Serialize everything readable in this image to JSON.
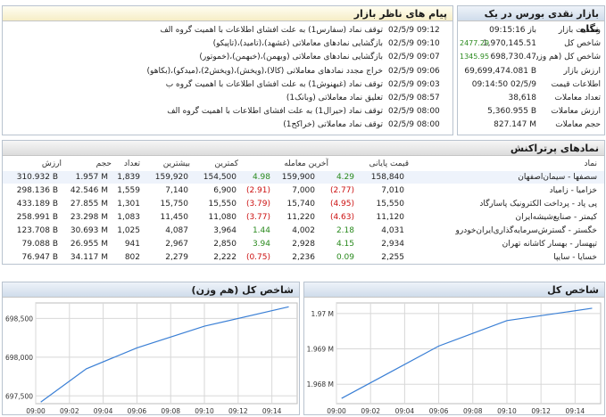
{
  "messages": {
    "title": "پیام های ناظر بازار",
    "items": [
      {
        "time": "02/5/9 09:12",
        "text": "توقف نماد (سفارس1) به علت افشای اطلاعات با اهمیت گروه الف"
      },
      {
        "time": "02/5/9 09:10",
        "text": "بازگشایی نمادهای معاملاتی (غشهد)،(تامید)،(تاپیکو)"
      },
      {
        "time": "02/5/9 09:07",
        "text": "بازگشایی نمادهای معاملاتی (وبهمن)،(خبهمن)،(خموتور)"
      },
      {
        "time": "02/5/9 09:06",
        "text": "خراج مجدد نمادهای معاملاتی (کالا)،(ویخش)،(ویخش2)،(میدکو)،(بکاهو)"
      },
      {
        "time": "02/5/9 09:03",
        "text": "توقف نماد (غبهنوش1) به علت افشای اطلاعات با اهمیت گروه ب"
      },
      {
        "time": "02/5/9 08:57",
        "text": "تعلیق نماد معاملاتی (وبانک1)"
      },
      {
        "time": "02/5/9 08:00",
        "text": "توقف نماد (حیرال1) به علت افشای اطلاعات با اهمیت گروه الف"
      },
      {
        "time": "02/5/9 08:00",
        "text": "توقف نماد معاملاتی (خراکح1)"
      }
    ]
  },
  "market": {
    "title": "بازار نقدی بورس در یک نگاه",
    "rows": [
      {
        "label": "وضعیت بازار",
        "value": "باز 09:15:16",
        "change": ""
      },
      {
        "label": "شاخص کل",
        "value": "1,970,145.51",
        "change": "2477.29"
      },
      {
        "label": "شاخص کل (هم وزن)",
        "value": "698,730.47",
        "change": "1345.95"
      },
      {
        "label": "ارزش بازار",
        "value": "69,699,474.081 B",
        "change": ""
      },
      {
        "label": "اطلاعات قیمت",
        "value": "09:14:50 02/5/9",
        "change": ""
      },
      {
        "label": "تعداد معاملات",
        "value": "38,618",
        "change": ""
      },
      {
        "label": "ارزش معاملات",
        "value": "5,360.955 B",
        "change": ""
      },
      {
        "label": "حجم معاملات",
        "value": "827.147 M",
        "change": ""
      }
    ]
  },
  "influential": {
    "title": "نمادهای پرتراکنش",
    "headers": {
      "symbol": "نماد",
      "close": "قیمت پایانی",
      "last": "آخرین معامله",
      "low": "کمترین",
      "high": "بیشترین",
      "count": "تعداد",
      "volume": "حجم",
      "value": "ارزش"
    },
    "rows": [
      {
        "symbol": "سصفها - سیمان‌اصفهان",
        "close": "158,840",
        "close_chg": "4.29",
        "close_dir": "up",
        "last": "159,900",
        "last_chg": "4.98",
        "last_dir": "up",
        "low": "154,500",
        "high": "159,920",
        "count": "1,839",
        "volume": "1.957 M",
        "value": "310.932 B"
      },
      {
        "symbol": "خزامیا - زامیاد",
        "close": "7,010",
        "close_chg": "(2.77)",
        "close_dir": "down",
        "last": "7,000",
        "last_chg": "(2.91)",
        "last_dir": "down",
        "low": "6,900",
        "high": "7,140",
        "count": "1,559",
        "volume": "42.546 M",
        "value": "298.136 B"
      },
      {
        "symbol": "پی پاد - پرداخت الکترونیک پاسارگاد",
        "close": "15,550",
        "close_chg": "(4.95)",
        "close_dir": "down",
        "last": "15,740",
        "last_chg": "(3.79)",
        "last_dir": "down",
        "low": "15,550",
        "high": "15,750",
        "count": "1,301",
        "volume": "27.855 M",
        "value": "433.189 B"
      },
      {
        "symbol": "کیمتر - صنایع‌شیشه‌ایران",
        "close": "11,120",
        "close_chg": "(4.63)",
        "close_dir": "down",
        "last": "11,220",
        "last_chg": "(3.77)",
        "last_dir": "down",
        "low": "11,080",
        "high": "11,450",
        "count": "1,083",
        "volume": "23.298 M",
        "value": "258.991 B"
      },
      {
        "symbol": "خگستر - گسترش‌سرمایه‌گذاری‌ایران‌خودرو",
        "close": "4,031",
        "close_chg": "2.18",
        "close_dir": "up",
        "last": "4,002",
        "last_chg": "1.44",
        "last_dir": "up",
        "low": "3,964",
        "high": "4,087",
        "count": "1,025",
        "volume": "30.693 M",
        "value": "123.708 B"
      },
      {
        "symbol": "تپهسار - بهسار کاشانه تهران",
        "close": "2,934",
        "close_chg": "4.15",
        "close_dir": "up",
        "last": "2,928",
        "last_chg": "3.94",
        "last_dir": "up",
        "low": "2,850",
        "high": "2,967",
        "count": "941",
        "volume": "26.955 M",
        "value": "79.088 B"
      },
      {
        "symbol": "خسایا - سایپا",
        "close": "2,255",
        "close_chg": "0.09",
        "close_dir": "up",
        "last": "2,236",
        "last_chg": "(0.75)",
        "last_dir": "down",
        "low": "2,222",
        "high": "2,279",
        "count": "802",
        "volume": "34.117 M",
        "value": "76.947 B"
      }
    ]
  },
  "colors": {
    "up": "#2a8a1e",
    "down": "#cc1111",
    "line": "#3a7fd5",
    "grid": "#d8d8d8"
  },
  "chart_data": [
    {
      "type": "line",
      "title": "شاخص کل (هم وزن)",
      "x_ticks": [
        "09:00",
        "09:02",
        "09:04",
        "09:06",
        "09:08",
        "09:10",
        "09:12",
        "09:14"
      ],
      "y_ticks": [
        "697,500",
        "698,000",
        "698,500"
      ],
      "ylim": [
        697400,
        698700
      ],
      "xlim": [
        0,
        15.5
      ],
      "series": [
        {
          "x": [
            0.3,
            3,
            6,
            10,
            15
          ],
          "values": [
            697420,
            697850,
            698120,
            698400,
            698650
          ]
        }
      ]
    },
    {
      "type": "line",
      "title": "شاخص کل",
      "x_ticks": [
        "09:00",
        "09:02",
        "09:04",
        "09:06",
        "09:08",
        "09:10",
        "09:12",
        "09:14"
      ],
      "y_ticks": [
        "1.968 M",
        "1.969 M",
        "1.97 M"
      ],
      "ylim": [
        1967450,
        1970300
      ],
      "xlim": [
        0,
        15.5
      ],
      "series": [
        {
          "x": [
            0.3,
            3,
            6,
            10,
            15
          ],
          "values": [
            1967600,
            1968300,
            1969080,
            1969800,
            1970150
          ]
        }
      ]
    }
  ]
}
